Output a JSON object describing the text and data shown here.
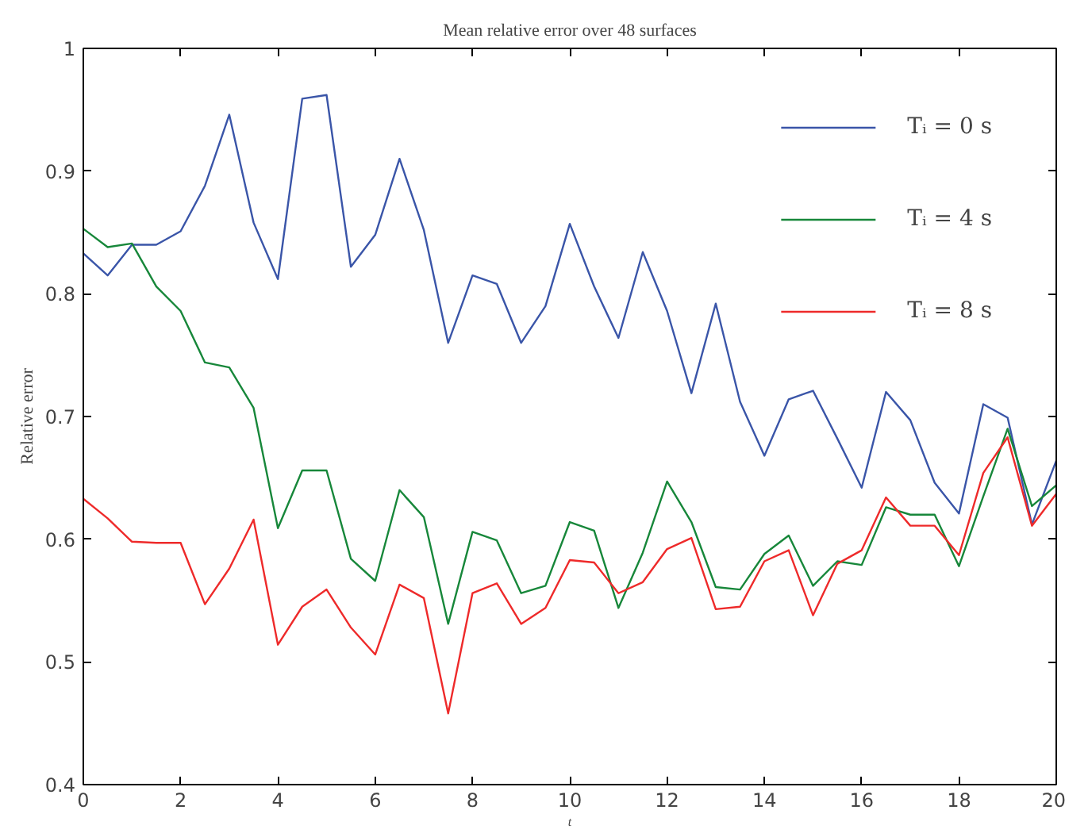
{
  "chart_data": {
    "type": "line",
    "title": "Mean relative error over 48 surfaces",
    "xlabel": "t",
    "ylabel": "Relative error",
    "x": [
      0,
      0.5,
      1,
      1.5,
      2,
      2.5,
      3,
      3.5,
      4,
      4.5,
      5,
      5.5,
      6,
      6.5,
      7,
      7.5,
      8,
      8.5,
      9,
      9.5,
      10,
      10.5,
      11,
      11.5,
      12,
      12.5,
      13,
      13.5,
      14,
      14.5,
      15,
      15.5,
      16,
      16.5,
      17,
      17.5,
      18,
      18.5,
      19,
      19.5,
      20
    ],
    "series": [
      {
        "name": "Tᵢ = 0 s",
        "color": "#3a55a8",
        "values": [
          0.833,
          0.815,
          0.84,
          0.84,
          0.851,
          0.888,
          0.946,
          0.858,
          0.812,
          0.959,
          0.962,
          0.822,
          0.848,
          0.91,
          0.852,
          0.76,
          0.815,
          0.808,
          0.76,
          0.79,
          0.857,
          0.806,
          0.764,
          0.834,
          0.786,
          0.719,
          0.792,
          0.712,
          0.668,
          0.714,
          0.721,
          0.682,
          0.642,
          0.72,
          0.697,
          0.646,
          0.621,
          0.71,
          0.699,
          0.612,
          0.664
        ]
      },
      {
        "name": "Tᵢ = 4 s",
        "color": "#17873a",
        "values": [
          0.853,
          0.838,
          0.841,
          0.806,
          0.786,
          0.744,
          0.74,
          0.707,
          0.609,
          0.656,
          0.656,
          0.584,
          0.566,
          0.64,
          0.618,
          0.531,
          0.606,
          0.599,
          0.556,
          0.562,
          0.614,
          0.607,
          0.544,
          0.589,
          0.647,
          0.614,
          0.561,
          0.559,
          0.588,
          0.603,
          0.562,
          0.582,
          0.579,
          0.626,
          0.62,
          0.62,
          0.578,
          0.635,
          0.69,
          0.627,
          0.644
        ]
      },
      {
        "name": "Tᵢ = 8 s",
        "color": "#ee2a2a",
        "values": [
          0.633,
          0.617,
          0.598,
          0.597,
          0.597,
          0.547,
          0.576,
          0.616,
          0.514,
          0.545,
          0.559,
          0.528,
          0.506,
          0.563,
          0.552,
          0.458,
          0.556,
          0.564,
          0.531,
          0.544,
          0.583,
          0.581,
          0.556,
          0.565,
          0.592,
          0.601,
          0.543,
          0.545,
          0.582,
          0.591,
          0.538,
          0.58,
          0.591,
          0.634,
          0.611,
          0.611,
          0.587,
          0.654,
          0.683,
          0.611,
          0.637
        ]
      }
    ],
    "xlim": [
      0,
      20
    ],
    "ylim": [
      0.4,
      1
    ],
    "xticks": [
      0,
      2,
      4,
      6,
      8,
      10,
      12,
      14,
      16,
      18,
      20
    ],
    "yticks": [
      0.4,
      0.5,
      0.6,
      0.7,
      0.8,
      0.9,
      1
    ],
    "grid": false,
    "legend": "top right",
    "line_style": "solid",
    "marker": "none"
  }
}
